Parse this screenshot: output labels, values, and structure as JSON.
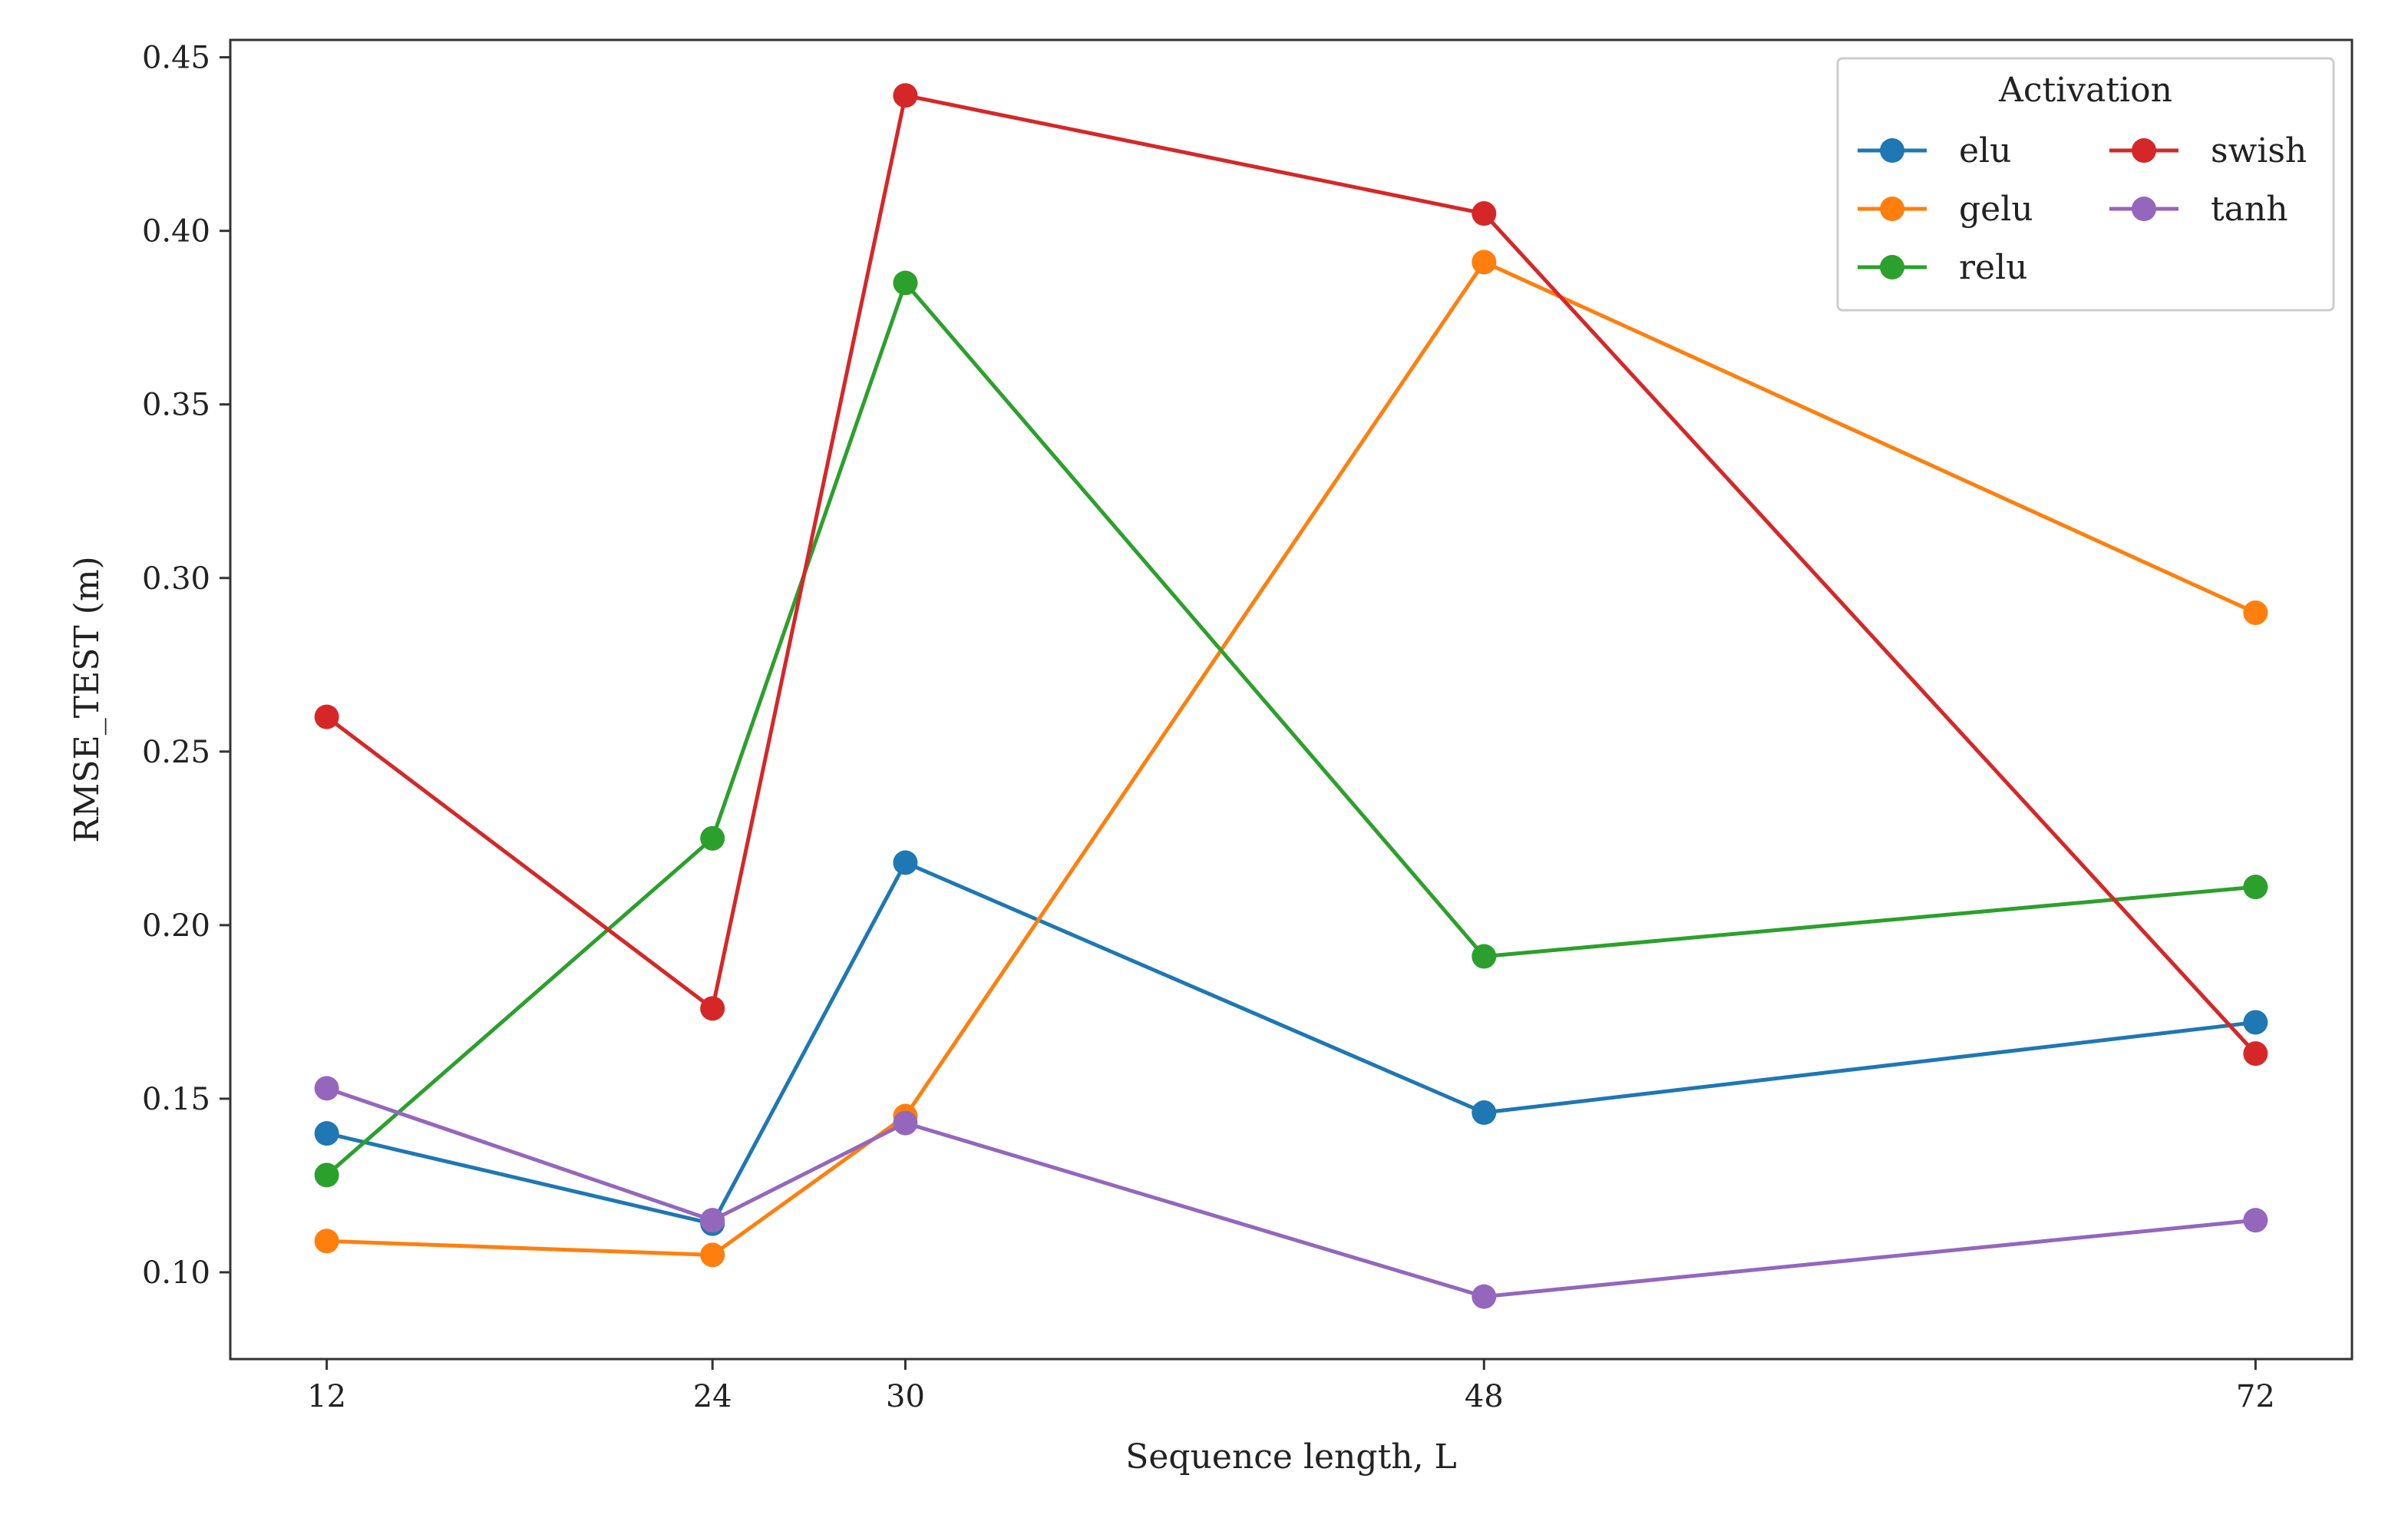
{
  "chart_data": {
    "type": "line",
    "title": "",
    "xlabel": "Sequence length, L",
    "ylabel": "RMSE_TEST (m)",
    "x": [
      12,
      24,
      30,
      48,
      72
    ],
    "x_tick_labels": [
      "12",
      "24",
      "30",
      "48",
      "72"
    ],
    "xlim": [
      9,
      75
    ],
    "ylim": [
      0.075,
      0.455
    ],
    "y_ticks": [
      0.1,
      0.15,
      0.2,
      0.25,
      0.3,
      0.35,
      0.4,
      0.45
    ],
    "y_tick_labels": [
      "0.10",
      "0.15",
      "0.20",
      "0.25",
      "0.30",
      "0.35",
      "0.40",
      "0.45"
    ],
    "grid": false,
    "legend": {
      "title": "Activation",
      "placement": "top-right",
      "columns": 2
    },
    "series": [
      {
        "name": "elu",
        "color": "#1f77b4",
        "values": [
          0.14,
          0.114,
          0.218,
          0.146,
          0.172
        ]
      },
      {
        "name": "gelu",
        "color": "#ff7f0e",
        "values": [
          0.109,
          0.105,
          0.145,
          0.391,
          0.29
        ]
      },
      {
        "name": "relu",
        "color": "#2ca02c",
        "values": [
          0.128,
          0.225,
          0.385,
          0.191,
          0.211
        ]
      },
      {
        "name": "swish",
        "color": "#d62728",
        "values": [
          0.26,
          0.176,
          0.439,
          0.405,
          0.163
        ]
      },
      {
        "name": "tanh",
        "color": "#9467bd",
        "values": [
          0.153,
          0.115,
          0.143,
          0.093,
          0.115
        ]
      }
    ]
  }
}
